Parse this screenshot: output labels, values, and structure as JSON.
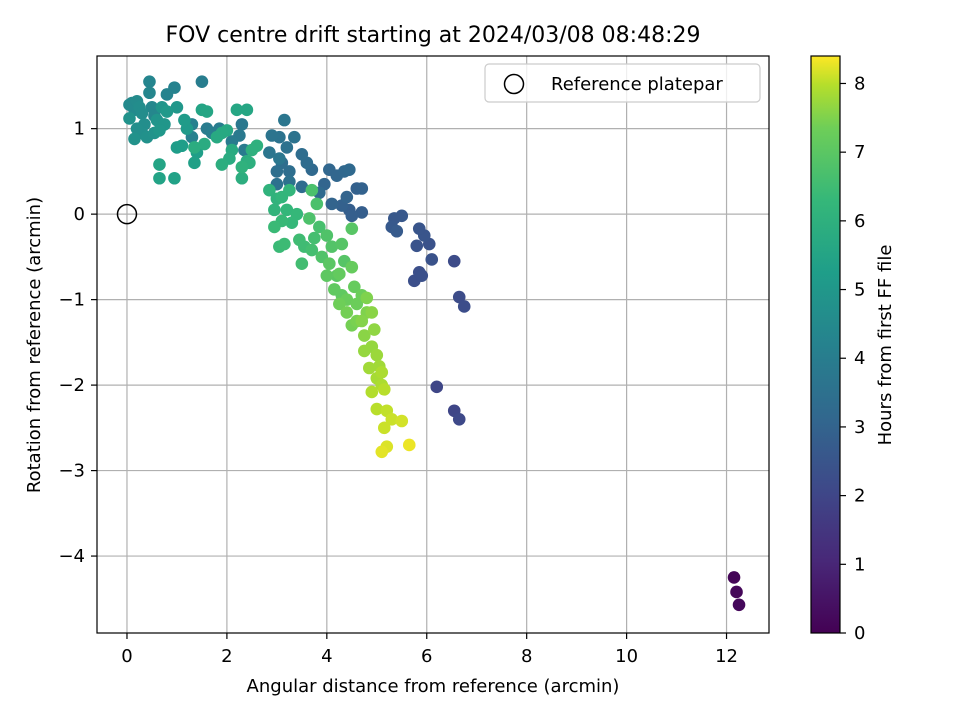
{
  "chart_data": {
    "type": "scatter",
    "title": "FOV centre drift starting at 2024/03/08 08:48:29",
    "xlabel": "Angular distance from reference (arcmin)",
    "ylabel": "Rotation from reference (arcmin)",
    "xlim": [
      -0.6,
      12.85
    ],
    "ylim": [
      -4.9,
      1.85
    ],
    "xticks": [
      0,
      2,
      4,
      6,
      8,
      10,
      12
    ],
    "yticks": [
      -4,
      -3,
      -2,
      -1,
      0,
      1
    ],
    "xtick_labels": [
      "0",
      "2",
      "4",
      "6",
      "8",
      "10",
      "12"
    ],
    "ytick_labels": [
      "−4",
      "−3",
      "−2",
      "−1",
      "0",
      "1"
    ],
    "grid": true,
    "legend": {
      "placement": "top-right",
      "entries": [
        {
          "label": "Reference platepar",
          "marker": "open-circle"
        }
      ]
    },
    "reference_point": {
      "x": 0,
      "y": 0
    },
    "colorbar": {
      "label": "Hours from first FF file",
      "min": 0,
      "max": 8.4,
      "ticks": [
        0,
        1,
        2,
        3,
        4,
        5,
        6,
        7,
        8
      ],
      "tick_labels": [
        "0",
        "1",
        "2",
        "3",
        "4",
        "5",
        "6",
        "7",
        "8"
      ],
      "colormap": "viridis"
    },
    "series": [
      {
        "marker": "filled-circle",
        "points": [
          [
            12.15,
            -4.25,
            0.1
          ],
          [
            12.2,
            -4.42,
            0.15
          ],
          [
            12.25,
            -4.57,
            0.2
          ],
          [
            6.2,
            -2.02,
            2.0
          ],
          [
            6.55,
            -2.3,
            2.0
          ],
          [
            6.65,
            -2.4,
            2.1
          ],
          [
            6.55,
            -0.55,
            2.2
          ],
          [
            6.65,
            -0.97,
            2.2
          ],
          [
            6.75,
            -1.08,
            2.25
          ],
          [
            5.75,
            -0.78,
            2.3
          ],
          [
            5.85,
            -0.68,
            2.3
          ],
          [
            5.9,
            -0.72,
            2.35
          ],
          [
            6.1,
            -0.53,
            2.4
          ],
          [
            6.05,
            -0.35,
            2.4
          ],
          [
            5.8,
            -0.37,
            2.45
          ],
          [
            5.95,
            -0.25,
            2.5
          ],
          [
            5.85,
            -0.17,
            2.5
          ],
          [
            5.5,
            -0.02,
            2.6
          ],
          [
            5.35,
            -0.05,
            2.6
          ],
          [
            5.3,
            -0.15,
            2.65
          ],
          [
            5.4,
            -0.2,
            2.7
          ],
          [
            4.7,
            0.02,
            2.8
          ],
          [
            4.45,
            0.05,
            2.8
          ],
          [
            4.5,
            -0.02,
            2.85
          ],
          [
            4.3,
            0.1,
            2.9
          ],
          [
            4.6,
            0.3,
            2.9
          ],
          [
            4.7,
            0.3,
            2.95
          ],
          [
            4.4,
            0.2,
            3.0
          ],
          [
            4.1,
            0.12,
            3.0
          ],
          [
            3.95,
            0.35,
            3.05
          ],
          [
            4.05,
            0.52,
            3.1
          ],
          [
            4.2,
            0.45,
            3.1
          ],
          [
            4.35,
            0.5,
            3.15
          ],
          [
            4.45,
            0.52,
            3.2
          ],
          [
            3.7,
            0.52,
            3.2
          ],
          [
            3.85,
            0.25,
            3.25
          ],
          [
            3.5,
            0.32,
            3.3
          ],
          [
            3.6,
            0.6,
            3.3
          ],
          [
            3.5,
            0.7,
            3.35
          ],
          [
            3.25,
            0.5,
            3.4
          ],
          [
            3.1,
            0.6,
            3.4
          ],
          [
            3.0,
            0.5,
            3.45
          ],
          [
            3.25,
            0.38,
            3.5
          ],
          [
            3.0,
            0.35,
            3.5
          ],
          [
            3.2,
            0.78,
            3.55
          ],
          [
            3.35,
            0.9,
            3.6
          ],
          [
            3.05,
            0.9,
            3.6
          ],
          [
            2.9,
            0.92,
            3.65
          ],
          [
            3.15,
            1.1,
            3.7
          ],
          [
            2.85,
            0.72,
            3.7
          ],
          [
            3.05,
            0.65,
            3.75
          ],
          [
            2.3,
            1.05,
            3.8
          ],
          [
            2.25,
            0.92,
            3.85
          ],
          [
            2.35,
            0.75,
            3.9
          ],
          [
            2.1,
            0.85,
            3.9
          ],
          [
            1.6,
            1.0,
            3.95
          ],
          [
            1.5,
            1.55,
            4.0
          ],
          [
            1.85,
            1.0,
            4.0
          ],
          [
            1.7,
            0.95,
            4.05
          ],
          [
            1.3,
            1.05,
            4.1
          ],
          [
            1.3,
            0.9,
            4.15
          ],
          [
            0.95,
            1.48,
            4.2
          ],
          [
            0.8,
            1.4,
            4.25
          ],
          [
            0.45,
            1.55,
            4.3
          ],
          [
            0.45,
            1.42,
            4.35
          ],
          [
            0.5,
            1.25,
            4.4
          ],
          [
            0.55,
            1.15,
            4.4
          ],
          [
            0.1,
            1.3,
            4.45
          ],
          [
            0.15,
            1.22,
            4.5
          ],
          [
            0.05,
            1.28,
            4.5
          ],
          [
            0.2,
            1.32,
            4.55
          ],
          [
            0.25,
            1.25,
            4.6
          ],
          [
            0.3,
            1.18,
            4.6
          ],
          [
            0.35,
            1.05,
            4.65
          ],
          [
            0.3,
            0.95,
            4.7
          ],
          [
            0.2,
            1.0,
            4.7
          ],
          [
            0.4,
            0.9,
            4.75
          ],
          [
            0.15,
            0.88,
            4.8
          ],
          [
            0.05,
            1.12,
            4.8
          ],
          [
            0.55,
            0.95,
            4.85
          ],
          [
            0.6,
            1.1,
            4.9
          ],
          [
            0.7,
            1.25,
            4.9
          ],
          [
            0.75,
            1.05,
            4.95
          ],
          [
            0.65,
            0.98,
            5.0
          ],
          [
            1.0,
            1.25,
            5.0
          ],
          [
            0.8,
            1.2,
            5.05
          ],
          [
            1.2,
            1.0,
            5.1
          ],
          [
            1.15,
            1.1,
            5.15
          ],
          [
            1.0,
            0.78,
            5.2
          ],
          [
            1.1,
            0.8,
            5.25
          ],
          [
            1.4,
            0.72,
            5.3
          ],
          [
            1.35,
            0.6,
            5.35
          ],
          [
            0.95,
            0.42,
            5.4
          ],
          [
            0.65,
            0.42,
            5.45
          ],
          [
            0.65,
            0.58,
            5.5
          ],
          [
            1.5,
            1.22,
            5.5
          ],
          [
            1.6,
            1.2,
            5.55
          ],
          [
            2.2,
            1.22,
            5.6
          ],
          [
            2.4,
            1.22,
            5.6
          ],
          [
            2.0,
            0.98,
            5.65
          ],
          [
            1.9,
            0.95,
            5.7
          ],
          [
            1.8,
            0.9,
            5.7
          ],
          [
            2.1,
            0.75,
            5.75
          ],
          [
            2.05,
            0.65,
            5.8
          ],
          [
            1.55,
            0.82,
            5.8
          ],
          [
            1.35,
            0.78,
            5.85
          ],
          [
            2.4,
            0.62,
            5.85
          ],
          [
            1.9,
            0.58,
            5.9
          ],
          [
            2.3,
            0.42,
            5.9
          ],
          [
            2.45,
            0.6,
            5.95
          ],
          [
            2.6,
            0.8,
            6.0
          ],
          [
            2.5,
            0.75,
            6.0
          ],
          [
            2.3,
            0.55,
            6.05
          ],
          [
            2.85,
            0.28,
            6.1
          ],
          [
            3.0,
            0.18,
            6.1
          ],
          [
            2.95,
            0.05,
            6.15
          ],
          [
            3.1,
            0.2,
            6.2
          ],
          [
            3.25,
            0.28,
            6.2
          ],
          [
            3.2,
            0.05,
            6.25
          ],
          [
            3.4,
            0.0,
            6.3
          ],
          [
            3.3,
            -0.1,
            6.3
          ],
          [
            3.1,
            -0.08,
            6.35
          ],
          [
            2.95,
            -0.15,
            6.4
          ],
          [
            3.05,
            -0.38,
            6.4
          ],
          [
            3.15,
            -0.35,
            6.45
          ],
          [
            3.45,
            -0.3,
            6.5
          ],
          [
            3.55,
            -0.38,
            6.5
          ],
          [
            3.5,
            -0.58,
            6.55
          ],
          [
            3.7,
            -0.42,
            6.6
          ],
          [
            3.75,
            -0.28,
            6.6
          ],
          [
            3.85,
            -0.15,
            6.65
          ],
          [
            3.7,
            0.28,
            6.7
          ],
          [
            3.8,
            0.12,
            6.7
          ],
          [
            3.65,
            -0.05,
            6.75
          ],
          [
            3.9,
            -0.5,
            6.8
          ],
          [
            4.0,
            -0.25,
            6.8
          ],
          [
            4.1,
            -0.38,
            6.85
          ],
          [
            4.3,
            -0.35,
            6.9
          ],
          [
            4.35,
            -0.55,
            6.9
          ],
          [
            4.5,
            -0.17,
            6.95
          ],
          [
            4.05,
            -0.58,
            7.0
          ],
          [
            4.2,
            -0.72,
            7.0
          ],
          [
            4.0,
            -0.72,
            7.05
          ],
          [
            4.15,
            -0.88,
            7.1
          ],
          [
            4.3,
            -0.95,
            7.1
          ],
          [
            4.25,
            -0.7,
            7.15
          ],
          [
            4.5,
            -0.62,
            7.2
          ],
          [
            4.55,
            -0.85,
            7.2
          ],
          [
            4.4,
            -1.0,
            7.25
          ],
          [
            4.6,
            -1.05,
            7.3
          ],
          [
            4.7,
            -0.95,
            7.3
          ],
          [
            4.25,
            -1.05,
            7.35
          ],
          [
            4.4,
            -1.15,
            7.4
          ],
          [
            4.5,
            -1.3,
            7.4
          ],
          [
            4.6,
            -1.25,
            7.45
          ],
          [
            4.8,
            -0.98,
            7.5
          ],
          [
            4.8,
            -1.15,
            7.5
          ],
          [
            4.7,
            -1.25,
            7.55
          ],
          [
            4.9,
            -1.15,
            7.6
          ],
          [
            4.75,
            -1.42,
            7.6
          ],
          [
            4.95,
            -1.35,
            7.65
          ],
          [
            4.9,
            -1.55,
            7.7
          ],
          [
            4.75,
            -1.6,
            7.7
          ],
          [
            5.0,
            -1.65,
            7.75
          ],
          [
            5.05,
            -1.78,
            7.8
          ],
          [
            4.85,
            -1.8,
            7.8
          ],
          [
            5.0,
            -1.92,
            7.85
          ],
          [
            5.1,
            -1.85,
            7.9
          ],
          [
            5.1,
            -2.0,
            7.9
          ],
          [
            4.9,
            -2.08,
            7.95
          ],
          [
            5.15,
            -2.05,
            8.0
          ],
          [
            5.0,
            -2.28,
            8.0
          ],
          [
            5.2,
            -2.3,
            8.05
          ],
          [
            5.3,
            -2.4,
            8.1
          ],
          [
            5.15,
            -2.5,
            8.1
          ],
          [
            5.5,
            -2.42,
            8.15
          ],
          [
            5.2,
            -2.72,
            8.2
          ],
          [
            5.1,
            -2.78,
            8.25
          ],
          [
            5.65,
            -2.7,
            8.3
          ]
        ]
      }
    ]
  }
}
